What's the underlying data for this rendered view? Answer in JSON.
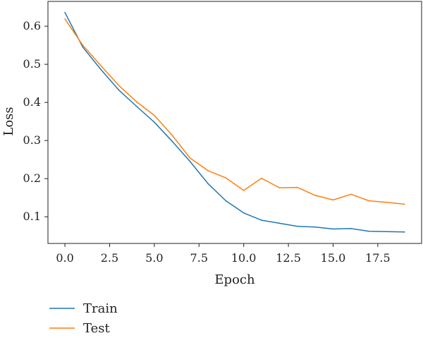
{
  "chart_data": {
    "type": "line",
    "title": "",
    "xlabel": "Epoch",
    "ylabel": "Loss",
    "xlim": [
      -0.95,
      19.95
    ],
    "ylim": [
      0.03,
      0.665
    ],
    "xticks": [
      "0.0",
      "2.5",
      "5.0",
      "7.5",
      "10.0",
      "12.5",
      "15.0",
      "17.5"
    ],
    "yticks": [
      "0.1",
      "0.2",
      "0.3",
      "0.4",
      "0.5",
      "0.6"
    ],
    "grid": false,
    "legend_position": "below",
    "x": [
      0,
      1,
      2,
      3,
      4,
      5,
      6,
      7,
      8,
      9,
      10,
      11,
      12,
      13,
      14,
      15,
      16,
      17,
      18,
      19
    ],
    "series": [
      {
        "name": "Train",
        "color": "#1f77b4",
        "values": [
          0.636,
          0.545,
          0.487,
          0.433,
          0.39,
          0.348,
          0.298,
          0.245,
          0.187,
          0.142,
          0.11,
          0.091,
          0.083,
          0.075,
          0.073,
          0.068,
          0.069,
          0.062,
          0.061,
          0.06
        ]
      },
      {
        "name": "Test",
        "color": "#ff7f0e",
        "values": [
          0.619,
          0.55,
          0.497,
          0.445,
          0.402,
          0.366,
          0.314,
          0.254,
          0.221,
          0.202,
          0.169,
          0.201,
          0.176,
          0.177,
          0.156,
          0.144,
          0.159,
          0.142,
          0.138,
          0.133
        ]
      }
    ]
  }
}
